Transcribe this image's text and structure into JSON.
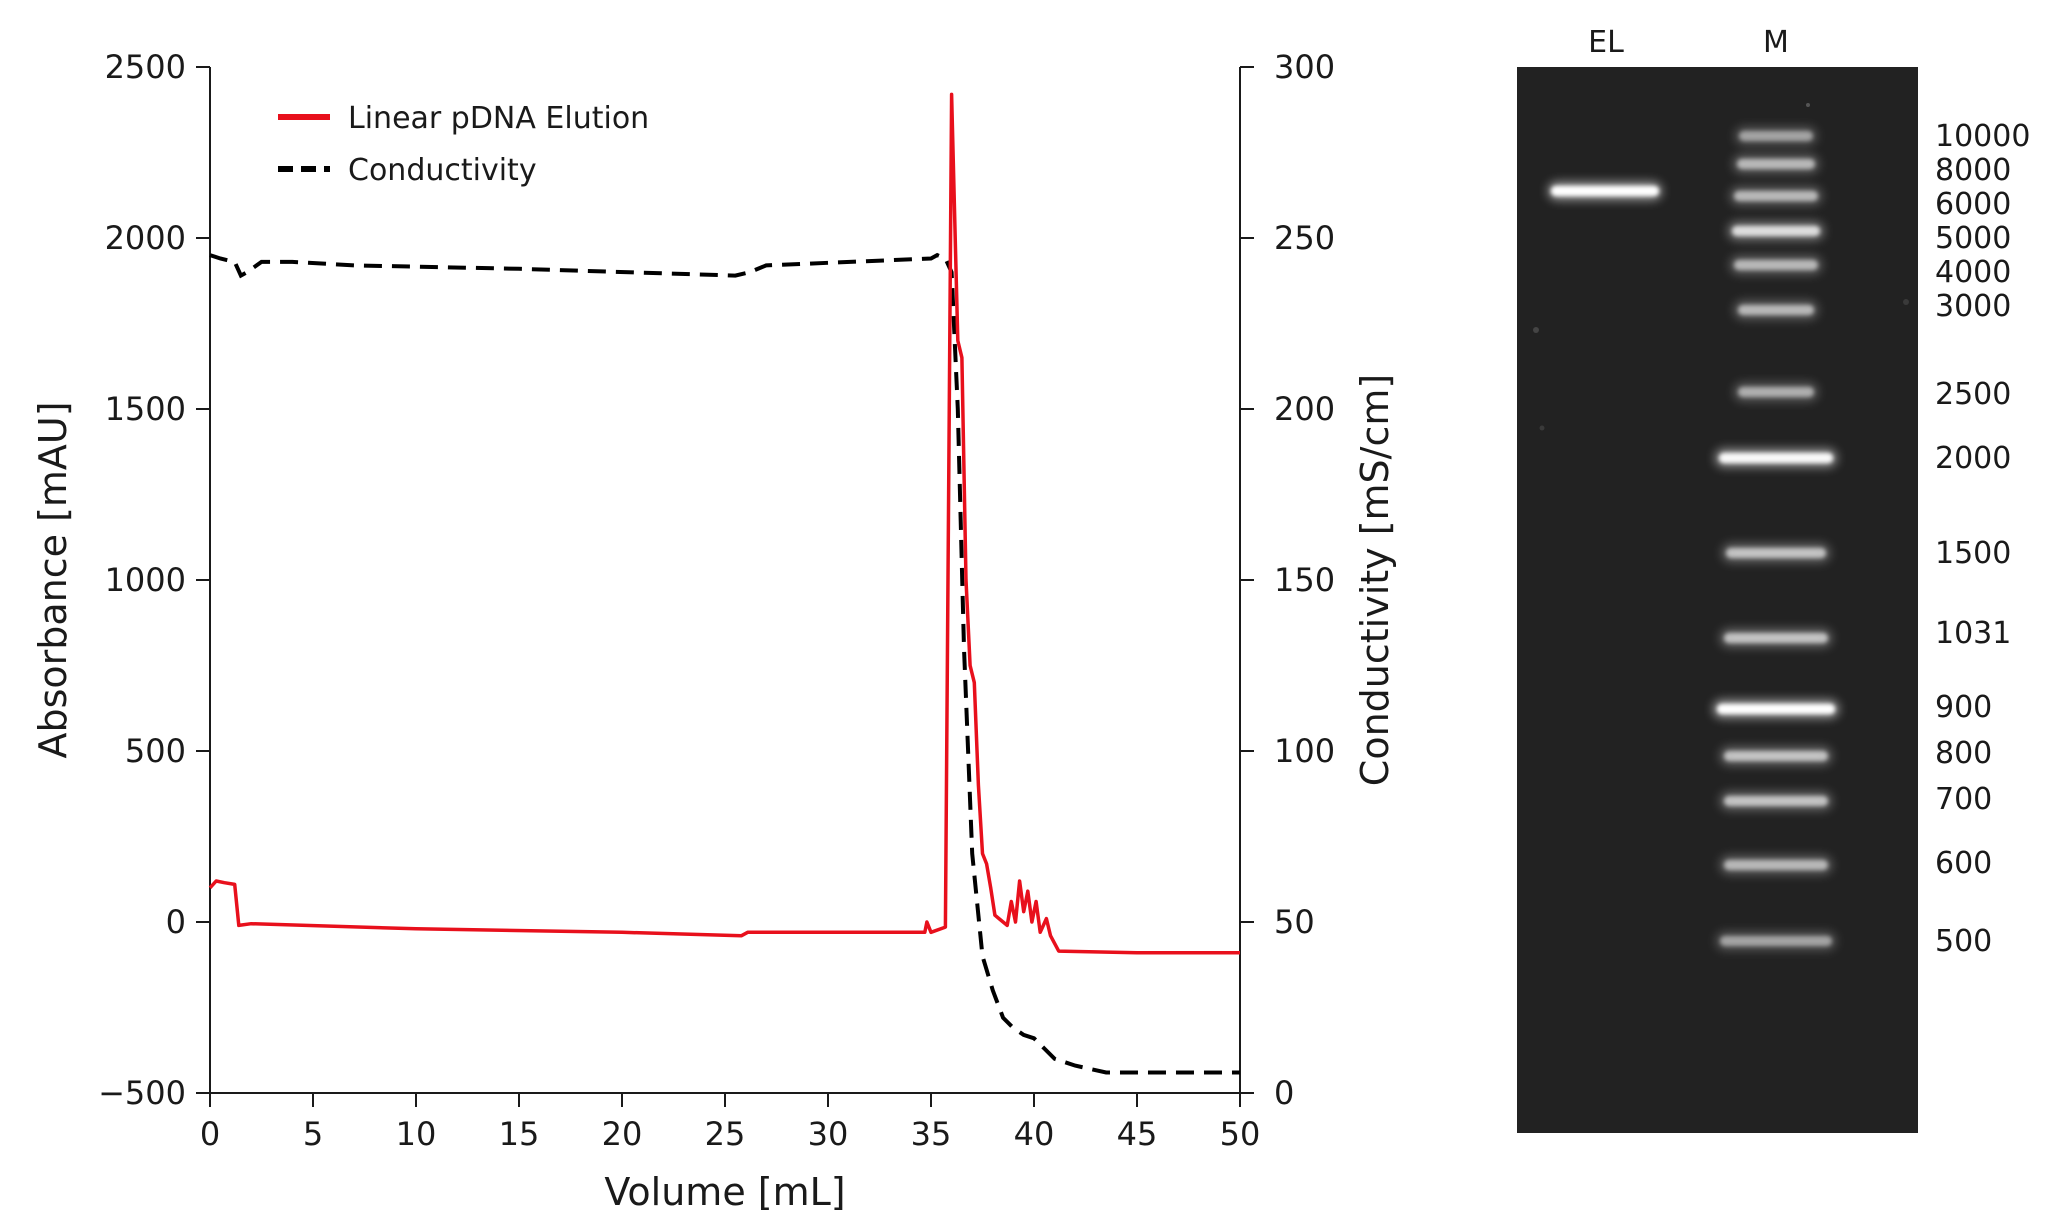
{
  "chart_data": [
    {
      "type": "line",
      "xlabel": "Volume [mL]",
      "ylabel": "Absorbance [mAU]",
      "y2label": "Conductivity [mS/cm]",
      "xlim": [
        0,
        50
      ],
      "ylim": [
        -500,
        2500
      ],
      "y2lim": [
        0,
        300
      ],
      "xticks": [
        "0",
        "5",
        "10",
        "15",
        "20",
        "25",
        "30",
        "35",
        "40",
        "45",
        "50"
      ],
      "yticks": [
        "−500",
        "0",
        "500",
        "1000",
        "1500",
        "2000",
        "2500"
      ],
      "y2ticks": [
        "0",
        "50",
        "100",
        "150",
        "200",
        "250",
        "300"
      ],
      "legend_position": "top-left",
      "grid": false,
      "series": [
        {
          "name": "Linear pDNA Elution",
          "axis": "left",
          "color": "#e8101c",
          "style": "solid",
          "points": [
            [
              0,
              100
            ],
            [
              0.3,
              120
            ],
            [
              0.7,
              115
            ],
            [
              1.2,
              110
            ],
            [
              1.4,
              -10
            ],
            [
              2,
              -5
            ],
            [
              10,
              -20
            ],
            [
              20,
              -30
            ],
            [
              25.8,
              -40
            ],
            [
              26.1,
              -30
            ],
            [
              34.7,
              -30
            ],
            [
              34.8,
              0
            ],
            [
              35,
              -30
            ],
            [
              35.7,
              -15
            ],
            [
              36.0,
              2420
            ],
            [
              36.3,
              1700
            ],
            [
              36.5,
              1650
            ],
            [
              36.7,
              1000
            ],
            [
              36.9,
              750
            ],
            [
              37.1,
              700
            ],
            [
              37.3,
              400
            ],
            [
              37.5,
              200
            ],
            [
              37.7,
              170
            ],
            [
              37.9,
              100
            ],
            [
              38.1,
              20
            ],
            [
              38.3,
              10
            ],
            [
              38.5,
              0
            ],
            [
              38.7,
              -10
            ],
            [
              38.9,
              60
            ],
            [
              39.1,
              0
            ],
            [
              39.3,
              120
            ],
            [
              39.5,
              30
            ],
            [
              39.7,
              90
            ],
            [
              39.9,
              0
            ],
            [
              40.1,
              60
            ],
            [
              40.3,
              -30
            ],
            [
              40.6,
              10
            ],
            [
              40.8,
              -40
            ],
            [
              41.2,
              -85
            ],
            [
              45,
              -90
            ],
            [
              50,
              -90
            ]
          ]
        },
        {
          "name": "Conductivity",
          "axis": "right",
          "color": "#000000",
          "style": "dashed",
          "points": [
            [
              0,
              245
            ],
            [
              0.5,
              244
            ],
            [
              1.2,
              243
            ],
            [
              1.5,
              239
            ],
            [
              1.8,
              240
            ],
            [
              2.5,
              243
            ],
            [
              4,
              243
            ],
            [
              7,
              242
            ],
            [
              15,
              241
            ],
            [
              25.5,
              239
            ],
            [
              26.2,
              240
            ],
            [
              27,
              242
            ],
            [
              35,
              244
            ],
            [
              35.3,
              245
            ],
            [
              35.7,
              244
            ],
            [
              36,
              240
            ],
            [
              36.3,
              200
            ],
            [
              36.6,
              130
            ],
            [
              37,
              70
            ],
            [
              37.5,
              40
            ],
            [
              38,
              30
            ],
            [
              38.5,
              22
            ],
            [
              39,
              19
            ],
            [
              39.5,
              17
            ],
            [
              40,
              16
            ],
            [
              40.5,
              13
            ],
            [
              41,
              10
            ],
            [
              42,
              8
            ],
            [
              43.5,
              6
            ],
            [
              50,
              6
            ]
          ]
        }
      ]
    },
    {
      "type": "gel",
      "lanes": [
        "EL",
        "M"
      ],
      "ladder_labels": [
        "10000",
        "8000",
        "6000",
        "5000",
        "4000",
        "3000",
        "2500",
        "2000",
        "1500",
        "1031",
        "900",
        "800",
        "700",
        "600",
        "500"
      ],
      "sample_band_bp": 6000
    }
  ]
}
